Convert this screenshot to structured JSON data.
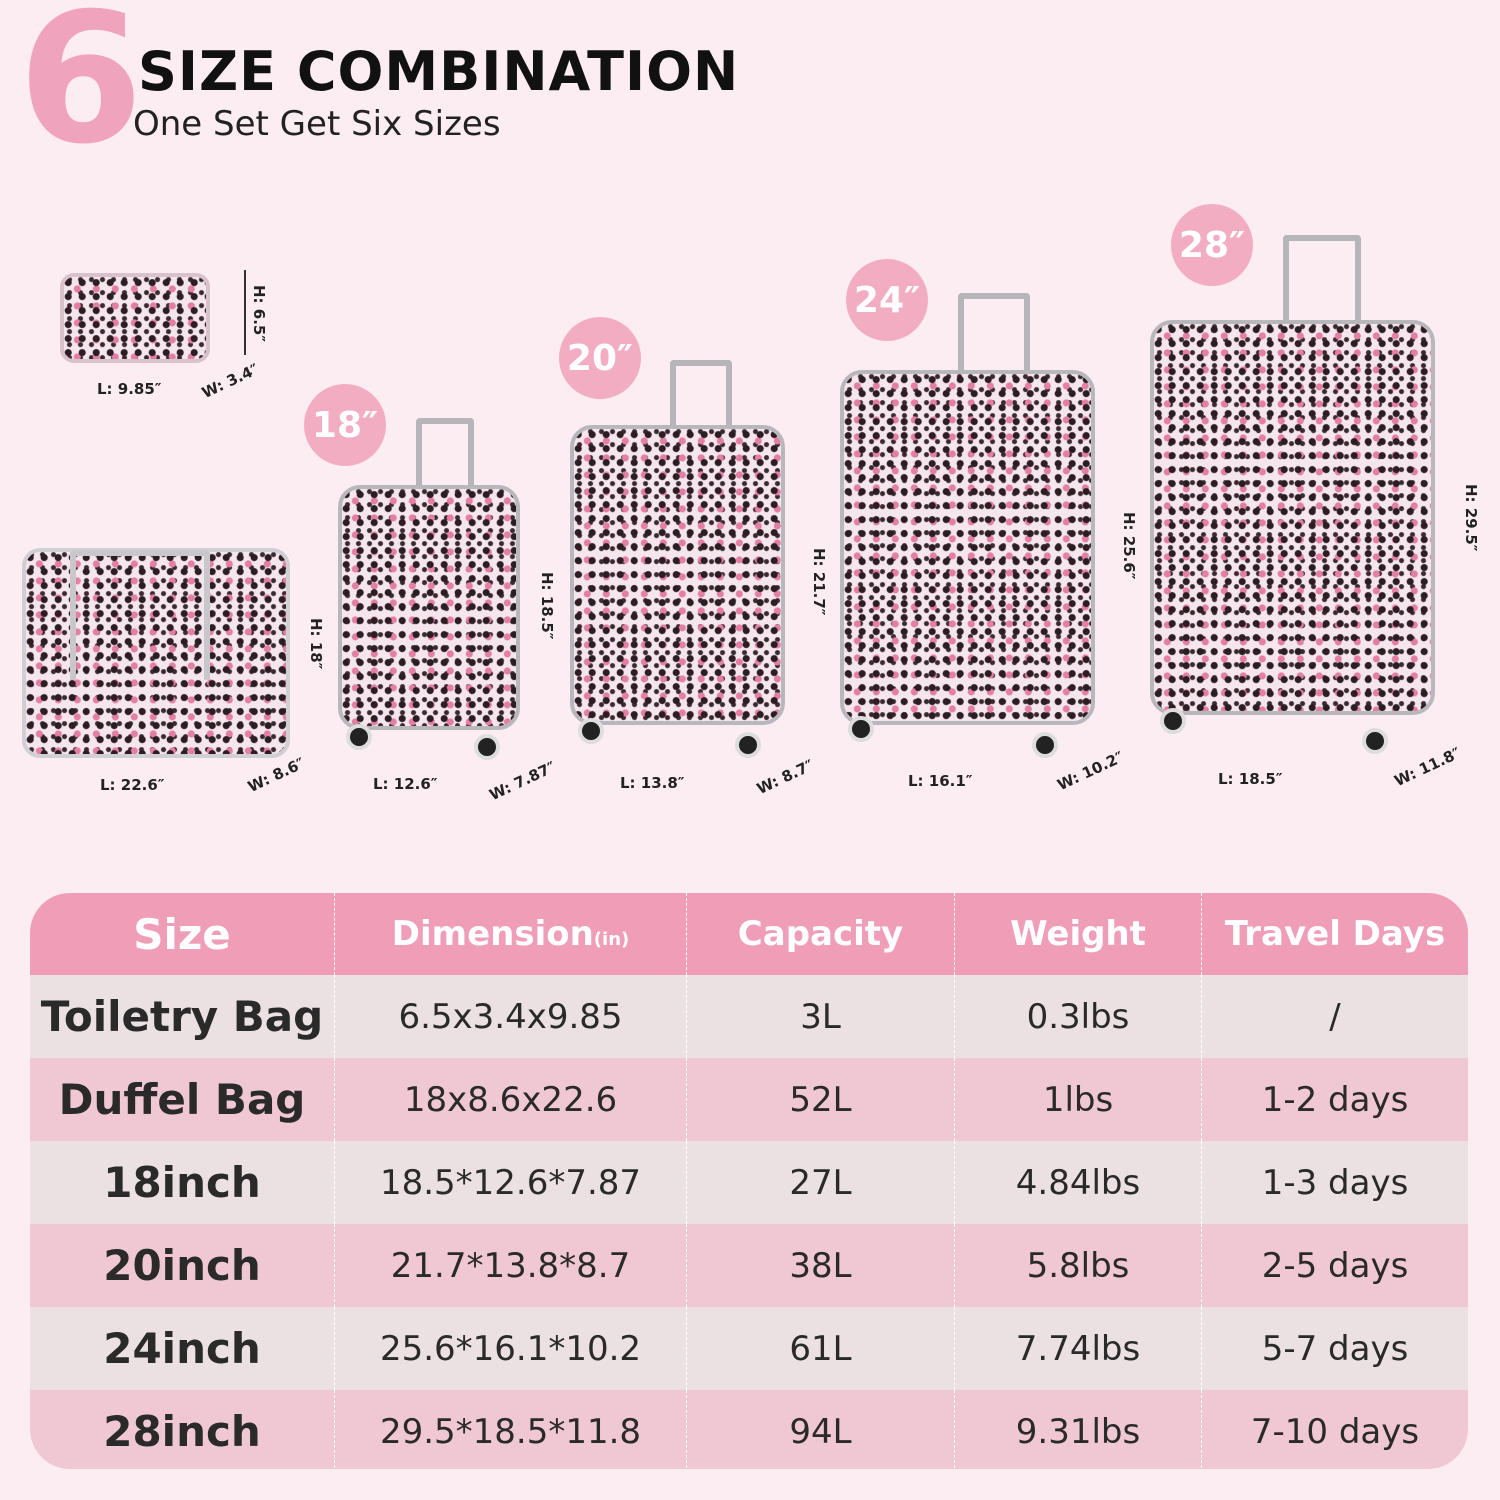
{
  "header": {
    "number": "6",
    "title": "SIZE COMBINATION",
    "subtitle": "One Set Get Six Sizes"
  },
  "products": [
    {
      "name": "toiletry-bag",
      "H": "H: 6.5″",
      "L": "L: 9.85″",
      "W": "W: 3.4″"
    },
    {
      "name": "duffel-bag",
      "H": "H: 18″",
      "L": "L: 22.6″",
      "W": "W: 8.6″"
    },
    {
      "name": "18",
      "badge": "18″",
      "H": "H: 18.5″",
      "L": "L: 12.6″",
      "W": "W: 7.87″"
    },
    {
      "name": "20",
      "badge": "20″",
      "H": "H: 21.7″",
      "L": "L: 13.8″",
      "W": "W: 8.7″"
    },
    {
      "name": "24",
      "badge": "24″",
      "H": "H: 25.6″",
      "L": "L: 16.1″",
      "W": "W: 10.2″"
    },
    {
      "name": "28",
      "badge": "28″",
      "H": "H: 29.5″",
      "L": "L: 18.5″",
      "W": "W: 11.8″"
    }
  ],
  "colors": {
    "accent": "#f09db8",
    "background": "#fcedf2",
    "row_light": "#ebe0e2",
    "row_pink": "#f0c8d4"
  },
  "table": {
    "headers": [
      "Size",
      "Dimension",
      "Capacity",
      "Weight",
      "Travel Days"
    ],
    "dimension_unit": "(in)",
    "rows": [
      [
        "Toiletry Bag",
        "6.5x3.4x9.85",
        "3L",
        "0.3lbs",
        "/"
      ],
      [
        "Duffel Bag",
        "18x8.6x22.6",
        "52L",
        "1lbs",
        "1-2 days"
      ],
      [
        "18inch",
        "18.5*12.6*7.87",
        "27L",
        "4.84lbs",
        "1-3 days"
      ],
      [
        "20inch",
        "21.7*13.8*8.7",
        "38L",
        "5.8lbs",
        "2-5 days"
      ],
      [
        "24inch",
        "25.6*16.1*10.2",
        "61L",
        "7.74lbs",
        "5-7 days"
      ],
      [
        "28inch",
        "29.5*18.5*11.8",
        "94L",
        "9.31lbs",
        "7-10 days"
      ]
    ]
  }
}
